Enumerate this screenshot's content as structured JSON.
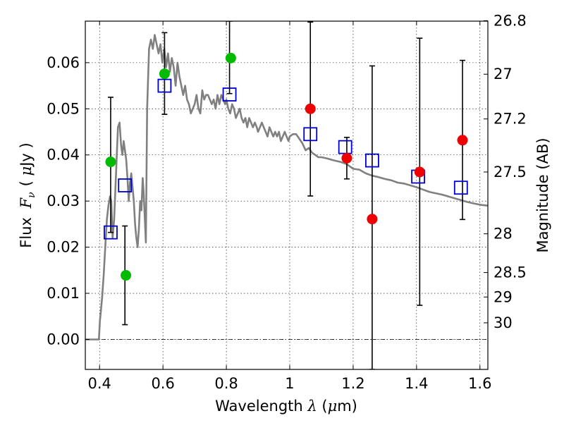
{
  "chart_data": {
    "type": "scatter",
    "xlabel": "Wavelength  λ (μm)",
    "ylabel": "Flux  F_ν  ( μJy )",
    "ylabel_parts": {
      "prefix": "Flux ",
      "symbol": "F",
      "subscript": "ν",
      "open": "( ",
      "mu": "μ",
      "unit": "Jy )"
    },
    "xlabel_parts": {
      "prefix": "Wavelength  ",
      "symbol": "λ",
      "unit_open": " (",
      "mu": "μ",
      "unit": "m)"
    },
    "y2label": "Magnitude (AB)",
    "xlim": [
      0.355,
      1.625
    ],
    "ylim": [
      -0.0065,
      0.069
    ],
    "grid": true,
    "x_ticks": [
      0.4,
      0.6,
      0.8,
      1.0,
      1.2,
      1.4,
      1.6
    ],
    "x_tick_labels": [
      "0.4",
      "0.6",
      "0.8",
      "1",
      "1.2",
      "1.4",
      "1.6"
    ],
    "y_ticks": [
      0.0,
      0.01,
      0.02,
      0.03,
      0.04,
      0.05,
      0.06
    ],
    "y_tick_labels": [
      "0.00",
      "0.01",
      "0.02",
      "0.03",
      "0.04",
      "0.05",
      "0.06"
    ],
    "magnitude_ticks": [
      {
        "label": "26.8",
        "flux": 0.0691
      },
      {
        "label": "27",
        "flux": 0.0575
      },
      {
        "label": "27.2",
        "flux": 0.0478
      },
      {
        "label": "27.5",
        "flux": 0.0363
      },
      {
        "label": "28",
        "flux": 0.0229
      },
      {
        "label": "28.5",
        "flux": 0.0145
      },
      {
        "label": "29",
        "flux": 0.0092
      },
      {
        "label": "30",
        "flux": 0.0036
      }
    ],
    "colors": {
      "model": "#808080",
      "green": "#00bb00",
      "red": "#ee0000",
      "square": "#0000cc",
      "errorbar": "#000000"
    },
    "model_sed": {
      "name": "model spectrum",
      "x": [
        0.355,
        0.398,
        0.401,
        0.404,
        0.408,
        0.413,
        0.418,
        0.423,
        0.428,
        0.433,
        0.437,
        0.441,
        0.446,
        0.452,
        0.458,
        0.463,
        0.468,
        0.472,
        0.476,
        0.48,
        0.484,
        0.488,
        0.492,
        0.496,
        0.5,
        0.504,
        0.508,
        0.512,
        0.516,
        0.52,
        0.524,
        0.528,
        0.532,
        0.536,
        0.539,
        0.543,
        0.546,
        0.55,
        0.556,
        0.562,
        0.568,
        0.574,
        0.58,
        0.586,
        0.592,
        0.598,
        0.604,
        0.61,
        0.616,
        0.622,
        0.628,
        0.634,
        0.64,
        0.646,
        0.652,
        0.658,
        0.664,
        0.67,
        0.676,
        0.682,
        0.688,
        0.694,
        0.7,
        0.706,
        0.712,
        0.718,
        0.724,
        0.73,
        0.736,
        0.742,
        0.748,
        0.754,
        0.76,
        0.766,
        0.772,
        0.778,
        0.784,
        0.79,
        0.796,
        0.8,
        0.806,
        0.812,
        0.818,
        0.824,
        0.83,
        0.836,
        0.842,
        0.848,
        0.854,
        0.86,
        0.866,
        0.872,
        0.878,
        0.884,
        0.89,
        0.896,
        0.9,
        0.906,
        0.912,
        0.918,
        0.924,
        0.93,
        0.936,
        0.942,
        0.948,
        0.954,
        0.96,
        0.966,
        0.972,
        0.978,
        0.984,
        0.99,
        0.996,
        1.0,
        1.01,
        1.02,
        1.03,
        1.04,
        1.05,
        1.06,
        1.07,
        1.08,
        1.09,
        1.1,
        1.12,
        1.14,
        1.16,
        1.18,
        1.2,
        1.22,
        1.24,
        1.26,
        1.28,
        1.3,
        1.32,
        1.34,
        1.36,
        1.38,
        1.4,
        1.42,
        1.44,
        1.46,
        1.48,
        1.5,
        1.52,
        1.54,
        1.56,
        1.58,
        1.6,
        1.625
      ],
      "y": [
        0.0,
        0.0,
        0.004,
        0.006,
        0.009,
        0.014,
        0.02,
        0.026,
        0.029,
        0.031,
        0.03,
        0.022,
        0.026,
        0.036,
        0.046,
        0.047,
        0.042,
        0.04,
        0.043,
        0.041,
        0.039,
        0.035,
        0.03,
        0.034,
        0.036,
        0.033,
        0.03,
        0.025,
        0.022,
        0.02,
        0.024,
        0.03,
        0.028,
        0.035,
        0.032,
        0.026,
        0.021,
        0.05,
        0.063,
        0.065,
        0.063,
        0.066,
        0.064,
        0.062,
        0.064,
        0.06,
        0.063,
        0.059,
        0.062,
        0.058,
        0.061,
        0.059,
        0.055,
        0.06,
        0.057,
        0.055,
        0.053,
        0.055,
        0.052,
        0.051,
        0.049,
        0.05,
        0.051,
        0.053,
        0.05,
        0.049,
        0.054,
        0.052,
        0.053,
        0.053,
        0.052,
        0.051,
        0.052,
        0.05,
        0.053,
        0.051,
        0.053,
        0.052,
        0.051,
        0.052,
        0.05,
        0.049,
        0.051,
        0.05,
        0.048,
        0.049,
        0.05,
        0.048,
        0.047,
        0.048,
        0.046,
        0.048,
        0.047,
        0.046,
        0.047,
        0.046,
        0.045,
        0.046,
        0.047,
        0.046,
        0.045,
        0.044,
        0.046,
        0.045,
        0.044,
        0.045,
        0.044,
        0.045,
        0.043,
        0.044,
        0.045,
        0.044,
        0.043,
        0.044,
        0.0445,
        0.0445,
        0.0435,
        0.0425,
        0.041,
        0.0415,
        0.0405,
        0.04,
        0.0395,
        0.0395,
        0.0392,
        0.0388,
        0.0385,
        0.038,
        0.037,
        0.0368,
        0.036,
        0.0355,
        0.0352,
        0.0348,
        0.0345,
        0.034,
        0.0338,
        0.0334,
        0.033,
        0.0325,
        0.032,
        0.0317,
        0.0314,
        0.031,
        0.0306,
        0.0302,
        0.0298,
        0.0295,
        0.0292,
        0.029
      ]
    },
    "series": [
      {
        "name": "green detections",
        "marker": "circle",
        "points": [
          {
            "x": 0.435,
            "y": 0.0385
          },
          {
            "x": 0.483,
            "y": 0.0139
          },
          {
            "x": 0.605,
            "y": 0.0576
          },
          {
            "x": 0.814,
            "y": 0.061
          }
        ]
      },
      {
        "name": "red detections",
        "marker": "circle",
        "points": [
          {
            "x": 1.065,
            "y": 0.05
          },
          {
            "x": 1.18,
            "y": 0.0393
          },
          {
            "x": 1.26,
            "y": 0.0261
          },
          {
            "x": 1.41,
            "y": 0.0363
          },
          {
            "x": 1.545,
            "y": 0.0432
          }
        ]
      },
      {
        "name": "model photometry",
        "marker": "square",
        "points": [
          {
            "x": 0.435,
            "y": 0.0232
          },
          {
            "x": 0.48,
            "y": 0.0334
          },
          {
            "x": 0.605,
            "y": 0.055
          },
          {
            "x": 0.81,
            "y": 0.0531
          },
          {
            "x": 1.065,
            "y": 0.0445
          },
          {
            "x": 1.175,
            "y": 0.0417
          },
          {
            "x": 1.26,
            "y": 0.0388
          },
          {
            "x": 1.405,
            "y": 0.0353
          },
          {
            "x": 1.54,
            "y": 0.0329
          }
        ]
      }
    ],
    "error_bars": [
      {
        "x": 0.435,
        "low": 0.0232,
        "high": 0.0525
      },
      {
        "x": 0.48,
        "low": 0.0032,
        "high": 0.0246
      },
      {
        "x": 0.605,
        "low": 0.0488,
        "high": 0.0665
      },
      {
        "x": 0.81,
        "low": 0.0533,
        "high": 0.069
      },
      {
        "x": 1.065,
        "low": 0.0311,
        "high": 0.0688
      },
      {
        "x": 1.18,
        "low": 0.0348,
        "high": 0.0438
      },
      {
        "x": 1.26,
        "low": -0.0065,
        "high": 0.0593
      },
      {
        "x": 1.41,
        "low": 0.0074,
        "high": 0.0653
      },
      {
        "x": 1.545,
        "low": 0.026,
        "high": 0.0605
      }
    ]
  }
}
